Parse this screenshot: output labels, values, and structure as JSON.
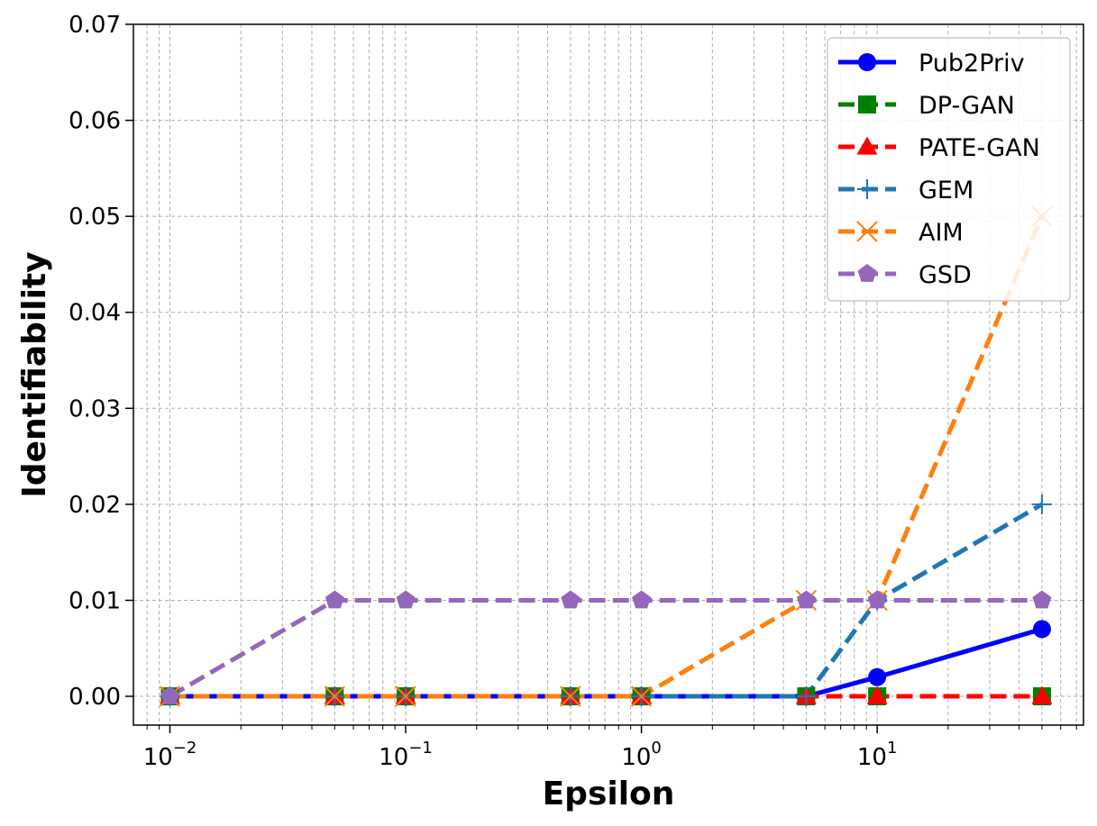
{
  "chart_data": {
    "type": "line",
    "xlabel": "Epsilon",
    "ylabel": "Identifiability",
    "x_scale": "log",
    "xlim": [
      0.007,
      75
    ],
    "ylim": [
      -0.003,
      0.07
    ],
    "x_ticks": [
      {
        "value": 0.01,
        "base": "10",
        "exp": "−2"
      },
      {
        "value": 0.1,
        "base": "10",
        "exp": "−1"
      },
      {
        "value": 1,
        "base": "10",
        "exp": "0"
      },
      {
        "value": 10,
        "base": "10",
        "exp": "1"
      }
    ],
    "y_ticks": [
      {
        "value": 0.0,
        "label": "0.00"
      },
      {
        "value": 0.01,
        "label": "0.01"
      },
      {
        "value": 0.02,
        "label": "0.02"
      },
      {
        "value": 0.03,
        "label": "0.03"
      },
      {
        "value": 0.04,
        "label": "0.04"
      },
      {
        "value": 0.05,
        "label": "0.05"
      },
      {
        "value": 0.06,
        "label": "0.06"
      },
      {
        "value": 0.07,
        "label": "0.07"
      }
    ],
    "grid": true,
    "legend_position": "top-right",
    "series": [
      {
        "name": "Pub2Priv",
        "color": "#0000ff",
        "marker": "circle",
        "dash": "solid",
        "x": [
          0.01,
          0.05,
          0.1,
          0.5,
          1,
          5,
          10,
          50
        ],
        "y": [
          0,
          0,
          0,
          0,
          0,
          0,
          0.002,
          0.007
        ]
      },
      {
        "name": "DP-GAN",
        "color": "#008000",
        "marker": "square",
        "dash": "dashed",
        "x": [
          0.01,
          0.05,
          0.1,
          0.5,
          1,
          5,
          10,
          50
        ],
        "y": [
          0,
          0,
          0,
          0,
          0,
          0,
          0,
          0
        ]
      },
      {
        "name": "PATE-GAN",
        "color": "#ff0000",
        "marker": "triangle",
        "dash": "dashed",
        "x": [
          0.01,
          0.05,
          0.1,
          0.5,
          1,
          5,
          10,
          50
        ],
        "y": [
          0,
          0,
          0,
          0,
          0,
          0,
          0,
          0
        ]
      },
      {
        "name": "GEM",
        "color": "#1f77b4",
        "marker": "plus",
        "dash": "dashed",
        "x": [
          0.01,
          0.05,
          0.1,
          0.5,
          1,
          5,
          10,
          50
        ],
        "y": [
          0,
          0,
          0,
          0,
          0,
          0,
          0.01,
          0.02
        ]
      },
      {
        "name": "AIM",
        "color": "#ff7f0e",
        "marker": "x",
        "dash": "dashed",
        "x": [
          0.01,
          0.05,
          0.1,
          0.5,
          1,
          5,
          10,
          50
        ],
        "y": [
          0,
          0,
          0,
          0,
          0,
          0.01,
          0.01,
          0.05
        ]
      },
      {
        "name": "GSD",
        "color": "#9467bd",
        "marker": "pentagon",
        "dash": "dashed",
        "x": [
          0.01,
          0.05,
          0.1,
          0.5,
          1,
          5,
          10,
          50
        ],
        "y": [
          0,
          0.01,
          0.01,
          0.01,
          0.01,
          0.01,
          0.01,
          0.01
        ]
      }
    ]
  }
}
